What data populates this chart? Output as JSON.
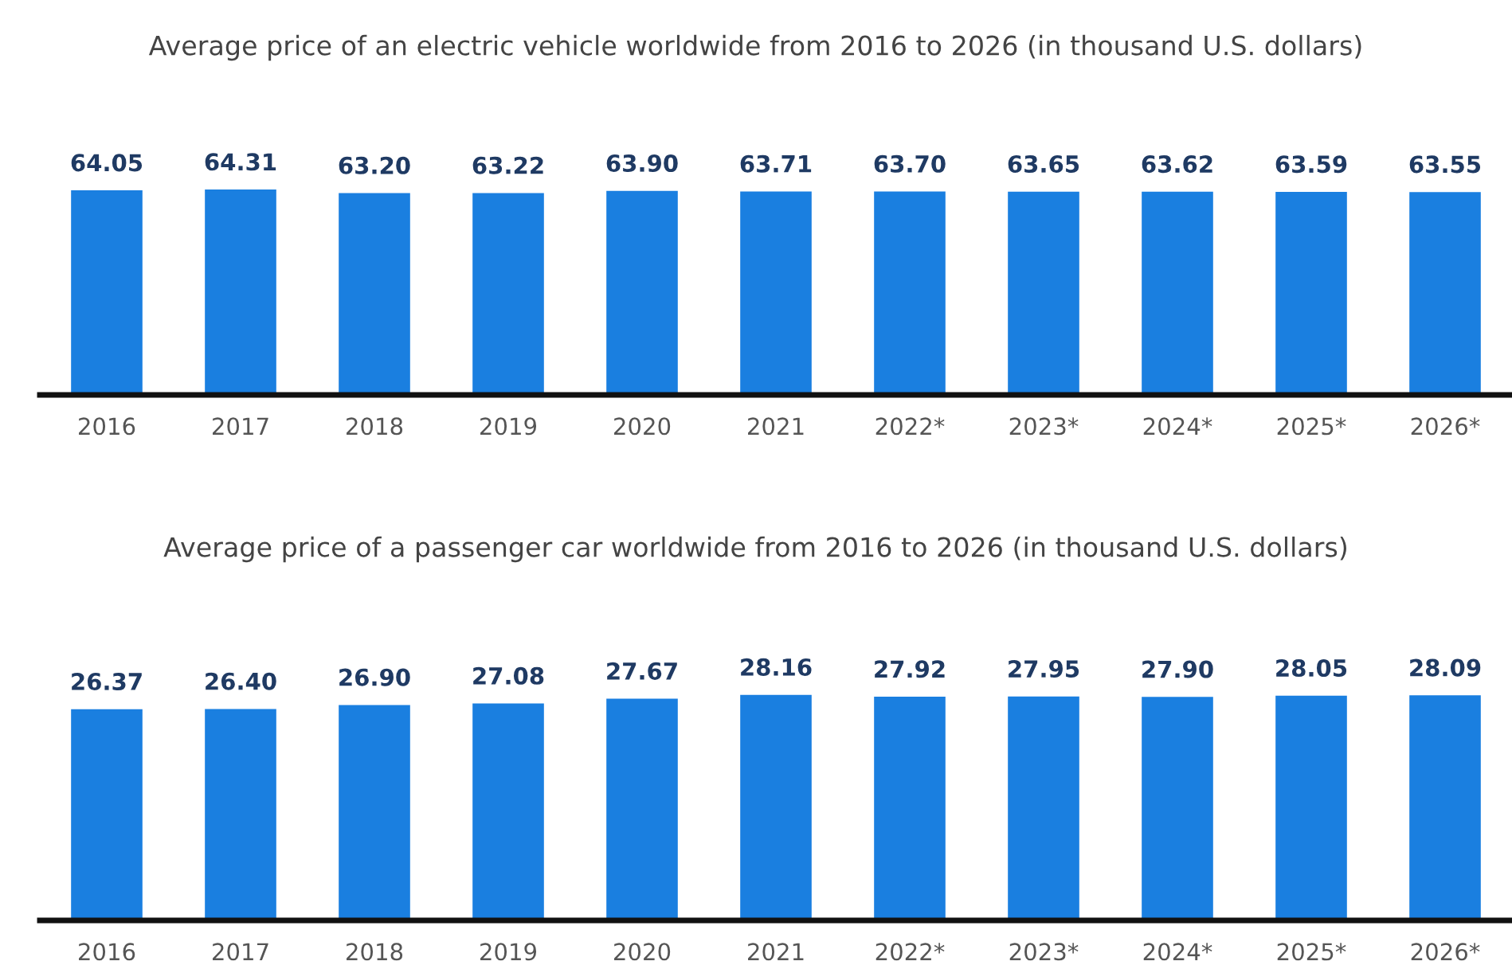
{
  "chart_data": [
    {
      "type": "bar",
      "title": "Average price of an electric vehicle worldwide from 2016 to 2026 (in thousand U.S. dollars)",
      "categories": [
        "2016",
        "2017",
        "2018",
        "2019",
        "2020",
        "2021",
        "2022*",
        "2023*",
        "2024*",
        "2025*",
        "2026*"
      ],
      "values": [
        64.05,
        64.31,
        63.2,
        63.22,
        63.9,
        63.71,
        63.7,
        63.65,
        63.62,
        63.59,
        63.55
      ],
      "value_labels": [
        "64.05",
        "64.31",
        "63.20",
        "63.22",
        "63.90",
        "63.71",
        "63.70",
        "63.65",
        "63.62",
        "63.59",
        "63.55"
      ],
      "color": "#1a7fe0",
      "tick_labels": "x",
      "grid": false,
      "legend": false
    },
    {
      "type": "bar",
      "title": "Average price of a passenger car worldwide from 2016 to 2026 (in thousand U.S. dollars)",
      "categories": [
        "2016",
        "2017",
        "2018",
        "2019",
        "2020",
        "2021",
        "2022*",
        "2023*",
        "2024*",
        "2025*",
        "2026*"
      ],
      "values": [
        26.37,
        26.4,
        26.9,
        27.08,
        27.67,
        28.16,
        27.92,
        27.95,
        27.9,
        28.05,
        28.09
      ],
      "value_labels": [
        "26.37",
        "26.40",
        "26.90",
        "27.08",
        "27.67",
        "28.16",
        "27.92",
        "27.95",
        "27.90",
        "28.05",
        "28.09"
      ],
      "color": "#1a7fe0",
      "tick_labels": "x",
      "grid": false,
      "legend": false
    }
  ]
}
